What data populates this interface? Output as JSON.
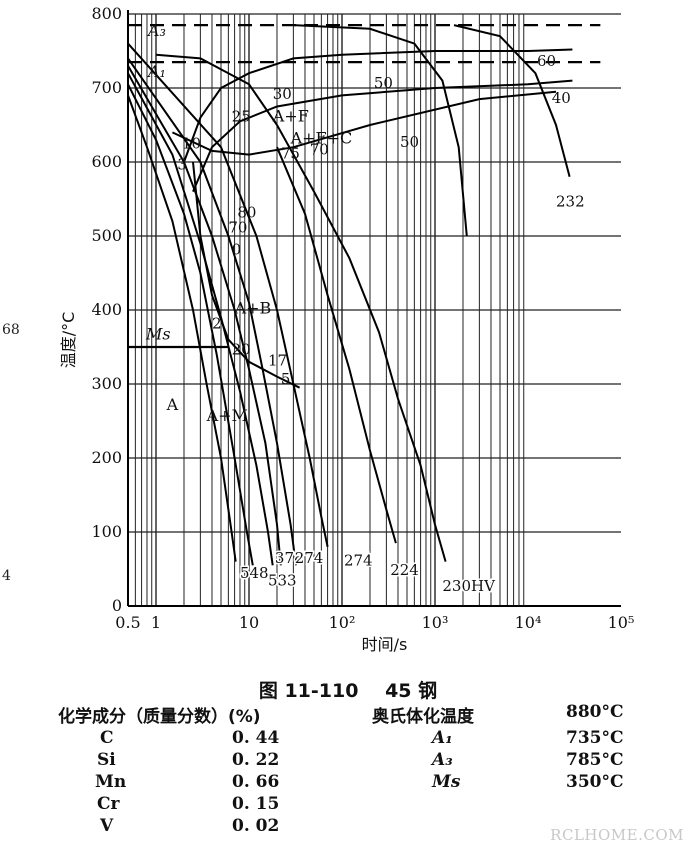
{
  "side_fragments": [
    "68",
    "4"
  ],
  "chart_data": {
    "type": "line",
    "title": "",
    "xlabel": "时间/s",
    "ylabel": "温度/°C",
    "x_scale": "log",
    "xlim": [
      0.5,
      100000
    ],
    "ylim": [
      0,
      800
    ],
    "x_ticks": [
      {
        "v": 0.5,
        "label": "0.5"
      },
      {
        "v": 1,
        "label": "1"
      },
      {
        "v": 10,
        "label": "10"
      },
      {
        "v": 100,
        "label": "10²"
      },
      {
        "v": 1000,
        "label": "10³"
      },
      {
        "v": 10000,
        "label": "10⁴"
      },
      {
        "v": 100000,
        "label": "10⁵"
      }
    ],
    "y_ticks": [
      0,
      100,
      200,
      300,
      400,
      500,
      600,
      700,
      800
    ],
    "grid": true,
    "reference_lines": [
      {
        "name": "A3",
        "y": 785
      },
      {
        "name": "A1",
        "y": 735
      },
      {
        "name": "Ms",
        "y": 350
      }
    ],
    "series": [
      {
        "name": "",
        "points": [
          [
            0.5,
            690
          ],
          [
            0.8,
            620
          ],
          [
            1.5,
            520
          ],
          [
            2.5,
            400
          ],
          [
            3.5,
            300
          ],
          [
            5,
            200
          ],
          [
            6.5,
            100
          ],
          [
            7.2,
            60
          ]
        ]
      },
      {
        "name": "",
        "points": [
          [
            0.5,
            705
          ],
          [
            1,
            630
          ],
          [
            2,
            530
          ],
          [
            3,
            450
          ],
          [
            4.5,
            340
          ],
          [
            7,
            200
          ],
          [
            9.5,
            100
          ],
          [
            11,
            55
          ]
        ]
      },
      {
        "name": "",
        "points": [
          [
            0.5,
            720
          ],
          [
            1.5,
            610
          ],
          [
            3,
            490
          ],
          [
            5,
            390
          ],
          [
            8,
            290
          ],
          [
            12,
            190
          ],
          [
            16,
            100
          ],
          [
            18,
            55
          ]
        ]
      },
      {
        "name": "",
        "points": [
          [
            0.5,
            730
          ],
          [
            2,
            600
          ],
          [
            4,
            500
          ],
          [
            7,
            400
          ],
          [
            10,
            320
          ],
          [
            15,
            220
          ],
          [
            20,
            110
          ],
          [
            22,
            55
          ]
        ]
      },
      {
        "name": "",
        "points": [
          [
            0.5,
            740
          ],
          [
            3,
            600
          ],
          [
            6,
            500
          ],
          [
            10,
            410
          ],
          [
            14,
            320
          ],
          [
            20,
            220
          ],
          [
            28,
            110
          ],
          [
            32,
            55
          ]
        ]
      },
      {
        "name": "",
        "points": [
          [
            0.5,
            760
          ],
          [
            5,
            620
          ],
          [
            12,
            500
          ],
          [
            20,
            400
          ],
          [
            30,
            300
          ],
          [
            45,
            200
          ],
          [
            60,
            120
          ],
          [
            70,
            80
          ]
        ]
      },
      {
        "name": "",
        "points": [
          [
            20,
            620
          ],
          [
            40,
            530
          ],
          [
            70,
            420
          ],
          [
            120,
            320
          ],
          [
            200,
            210
          ],
          [
            300,
            130
          ],
          [
            380,
            85
          ]
        ]
      },
      {
        "name": "",
        "points": [
          [
            1,
            745
          ],
          [
            3,
            740
          ],
          [
            10,
            705
          ],
          [
            20,
            650
          ],
          [
            50,
            560
          ],
          [
            120,
            470
          ],
          [
            250,
            370
          ],
          [
            400,
            280
          ],
          [
            700,
            190
          ],
          [
            1000,
            110
          ],
          [
            1300,
            60
          ]
        ]
      },
      {
        "name": "",
        "points": [
          [
            30,
            785
          ],
          [
            200,
            780
          ],
          [
            600,
            760
          ],
          [
            1200,
            710
          ],
          [
            1800,
            620
          ],
          [
            2200,
            500
          ]
        ]
      },
      {
        "name": "",
        "points": [
          [
            1600,
            785
          ],
          [
            5000,
            770
          ],
          [
            12000,
            720
          ],
          [
            20000,
            650
          ],
          [
            28000,
            580
          ]
        ]
      }
    ],
    "transformation_curves": [
      {
        "name": "start",
        "points": [
          [
            2,
            600
          ],
          [
            3,
            660
          ],
          [
            5,
            700
          ],
          [
            10,
            720
          ],
          [
            30,
            740
          ],
          [
            100,
            745
          ],
          [
            1000,
            750
          ],
          [
            10000,
            750
          ],
          [
            30000,
            752
          ]
        ]
      },
      {
        "name": "ferrite-finish",
        "points": [
          [
            2.5,
            560
          ],
          [
            4,
            620
          ],
          [
            8,
            655
          ],
          [
            20,
            675
          ],
          [
            100,
            690
          ],
          [
            1000,
            700
          ],
          [
            10000,
            705
          ],
          [
            30000,
            710
          ]
        ]
      },
      {
        "name": "pearlite-finish",
        "points": [
          [
            1.5,
            640
          ],
          [
            4,
            615
          ],
          [
            10,
            610
          ],
          [
            30,
            620
          ],
          [
            200,
            650
          ],
          [
            3000,
            685
          ],
          [
            20000,
            695
          ]
        ]
      },
      {
        "name": "bainite-start",
        "points": [
          [
            2.5,
            600
          ],
          [
            3,
            500
          ],
          [
            4,
            420
          ],
          [
            6,
            360
          ],
          [
            10,
            330
          ],
          [
            20,
            310
          ],
          [
            35,
            295
          ]
        ]
      }
    ],
    "region_labels": [
      "A",
      "A+F",
      "A+F+C",
      "A+B",
      "A+M",
      "A₃",
      "A₁",
      "Ms"
    ],
    "curve_labels": [
      "30",
      "25",
      "10",
      "3",
      "80",
      "70",
      "0",
      "2",
      "20",
      "17",
      "5",
      "75",
      "70",
      "50",
      "50",
      "60",
      "40",
      "232"
    ],
    "hardness_labels": [
      "548",
      "533",
      "378",
      "274",
      "274",
      "224",
      "230HV"
    ]
  },
  "caption": {
    "figure": "图 11-110",
    "material": "45 钢"
  },
  "composition": {
    "header": "化学成分（质量分数）(%)",
    "rows": [
      {
        "element": "C",
        "value": "0. 44"
      },
      {
        "element": "Si",
        "value": "0. 22"
      },
      {
        "element": "Mn",
        "value": "0. 66"
      },
      {
        "element": "Cr",
        "value": "0. 15"
      },
      {
        "element": "V",
        "value": "0. 02"
      }
    ]
  },
  "austenitizing": {
    "header": "奥氏体化温度",
    "header_value": "880°C",
    "rows": [
      {
        "name": "A₁",
        "value": "735°C"
      },
      {
        "name": "A₃",
        "value": "785°C"
      },
      {
        "name": "Ms",
        "value": "350°C"
      }
    ]
  },
  "watermark": "RCLHOME.COM",
  "colors": {
    "line": "#111111",
    "grid": "#222222",
    "background": "#ffffff",
    "watermark": "#c8c8c8"
  }
}
